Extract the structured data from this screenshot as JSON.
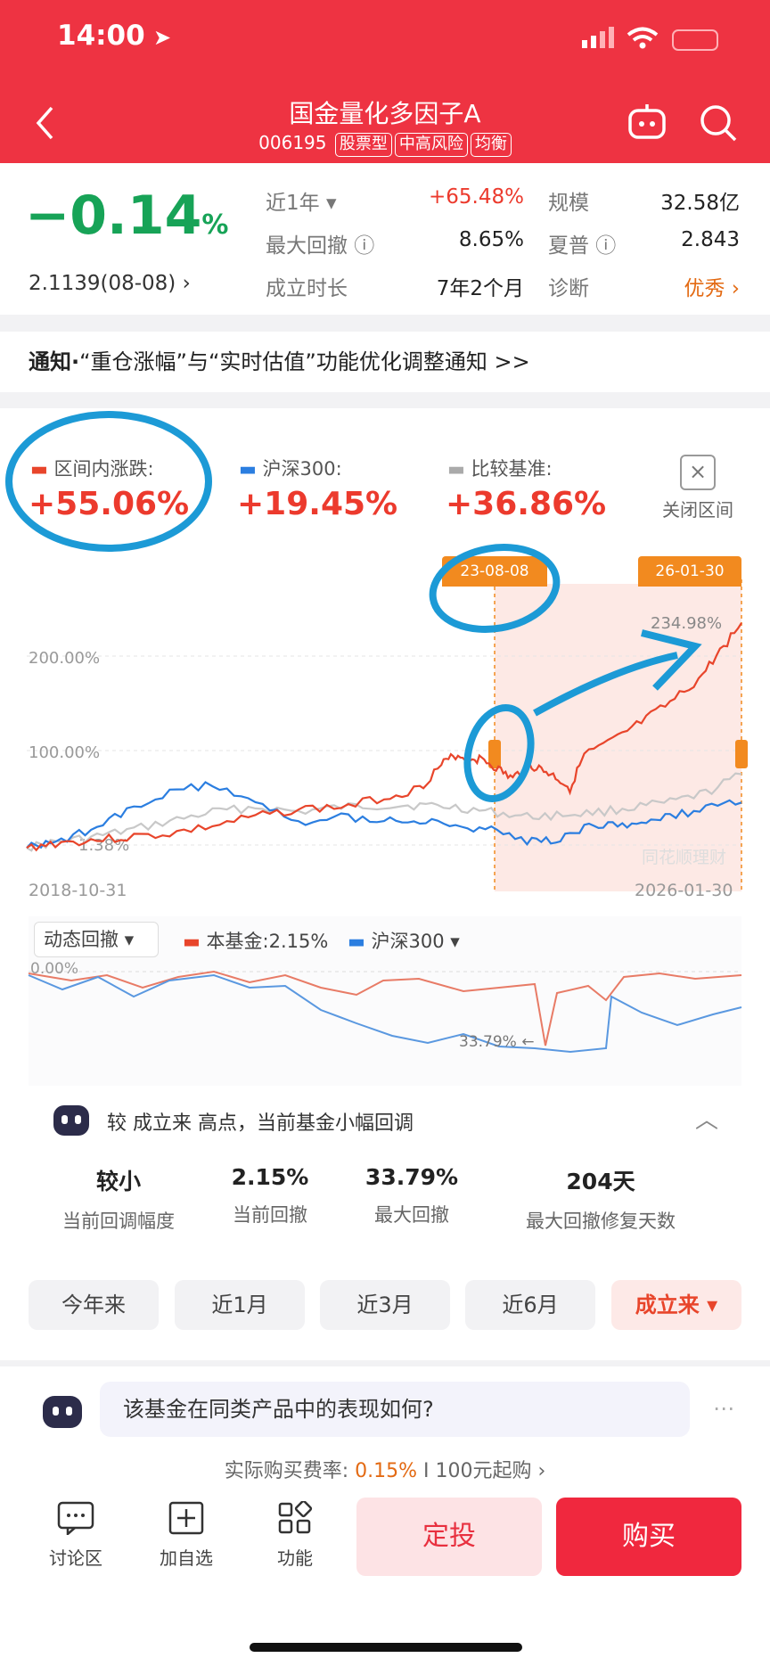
{
  "status_bar": {
    "time": "14:00"
  },
  "header": {
    "title": "国金量化多因子A",
    "code": "006195",
    "tags": [
      "股票型",
      "中高风险",
      "均衡"
    ]
  },
  "summary": {
    "change": "−0.14",
    "change_unit": "%",
    "nav": "2.1139(08-08)",
    "period_label": "近1年",
    "period_value": "+65.48%",
    "scale_label": "规模",
    "scale_value": "32.58亿",
    "drawdown_label": "最大回撤",
    "drawdown_value": "8.65%",
    "sharpe_label": "夏普",
    "sharpe_value": "2.843",
    "age_label": "成立时长",
    "age_value": "7年2个月",
    "diag_label": "诊断",
    "diag_value": "优秀"
  },
  "notice": {
    "prefix": "通知·",
    "text": "“重仓涨幅”与“实时估值”功能优化调整通知",
    "arrow": ">>"
  },
  "legend": {
    "fund_label": "区间内涨跌:",
    "fund_value": "+55.06%",
    "hs300_label": "沪深300:",
    "hs300_value": "+19.45%",
    "bench_label": "比较基准:",
    "bench_value": "+36.86%",
    "close_label": "关闭区间"
  },
  "chart_data": {
    "type": "line",
    "x_range": [
      "2018-10-31",
      "2026-01-30"
    ],
    "y_ticks": [
      "200.00%",
      "100.00%",
      "1.38%"
    ],
    "markers": {
      "start": "23-08-08",
      "end": "26-01-30",
      "peak": "234.98%"
    },
    "series": [
      {
        "name": "本基金",
        "color": "#e8452b",
        "points": [
          [
            0,
            -3
          ],
          [
            4,
            2
          ],
          [
            9,
            5
          ],
          [
            14,
            8
          ],
          [
            20,
            12
          ],
          [
            26,
            20
          ],
          [
            32,
            30
          ],
          [
            38,
            38
          ],
          [
            44,
            40
          ],
          [
            50,
            50
          ],
          [
            55,
            60
          ],
          [
            58,
            85
          ],
          [
            60,
            95
          ],
          [
            62,
            92
          ],
          [
            64,
            90
          ],
          [
            66,
            80
          ],
          [
            68,
            70
          ],
          [
            70,
            85
          ],
          [
            72,
            80
          ],
          [
            74,
            72
          ],
          [
            76,
            60
          ],
          [
            78,
            95
          ],
          [
            82,
            110
          ],
          [
            86,
            130
          ],
          [
            90,
            150
          ],
          [
            94,
            175
          ],
          [
            97,
            205
          ],
          [
            100,
            235
          ]
        ]
      },
      {
        "name": "沪深300",
        "color": "#2b7ee0",
        "points": [
          [
            0,
            -3
          ],
          [
            4,
            5
          ],
          [
            9,
            15
          ],
          [
            14,
            35
          ],
          [
            20,
            55
          ],
          [
            26,
            65
          ],
          [
            32,
            45
          ],
          [
            38,
            25
          ],
          [
            44,
            30
          ],
          [
            50,
            28
          ],
          [
            55,
            25
          ],
          [
            60,
            20
          ],
          [
            65,
            15
          ],
          [
            70,
            5
          ],
          [
            74,
            3
          ],
          [
            78,
            18
          ],
          [
            82,
            20
          ],
          [
            86,
            25
          ],
          [
            90,
            30
          ],
          [
            95,
            38
          ],
          [
            100,
            45
          ]
        ]
      },
      {
        "name": "比较基准",
        "color": "#c8c8c8",
        "points": [
          [
            0,
            -3
          ],
          [
            4,
            3
          ],
          [
            9,
            8
          ],
          [
            14,
            15
          ],
          [
            20,
            25
          ],
          [
            26,
            35
          ],
          [
            32,
            40
          ],
          [
            38,
            35
          ],
          [
            44,
            40
          ],
          [
            50,
            42
          ],
          [
            55,
            42
          ],
          [
            60,
            40
          ],
          [
            65,
            35
          ],
          [
            70,
            30
          ],
          [
            75,
            32
          ],
          [
            80,
            35
          ],
          [
            85,
            40
          ],
          [
            90,
            45
          ],
          [
            95,
            55
          ],
          [
            100,
            75
          ]
        ]
      }
    ]
  },
  "drawdown": {
    "selector": "动态回撤",
    "fund_label": "本基金:",
    "fund_value": "2.15%",
    "hs300_label": "沪深300",
    "zero_label": "0.00%",
    "max_label": "33.79%"
  },
  "ai_card": {
    "text": "较 成立来 高点，当前基金小幅回调",
    "stats": [
      {
        "value": "较小",
        "label": "当前回调幅度"
      },
      {
        "value": "2.15%",
        "label": "当前回撤"
      },
      {
        "value": "33.79%",
        "label": "最大回撤"
      },
      {
        "value": "204天",
        "label": "最大回撤修复天数"
      }
    ]
  },
  "ranges": [
    "今年来",
    "近1月",
    "近3月",
    "近6月",
    "成立来"
  ],
  "question": "该基金在同类产品中的表现如何?",
  "fee": {
    "label": "实际购买费率:",
    "value": "0.15%",
    "min": "I 100元起购"
  },
  "bottom": {
    "discuss": "讨论区",
    "watch": "加自选",
    "func": "功能",
    "sip": "定投",
    "buy": "购买"
  },
  "watermark": "同花顺理财"
}
